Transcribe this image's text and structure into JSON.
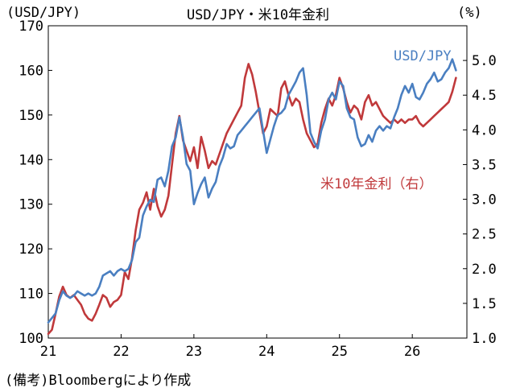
{
  "chart_data": {
    "type": "line",
    "title": "USD/JPY・米10年金利",
    "y_left_unit": "(USD/JPY)",
    "y_right_unit": "(%)",
    "x_ticks": [
      "21",
      "22",
      "23",
      "24",
      "25",
      "26"
    ],
    "x_range": [
      2021.0,
      2026.75
    ],
    "y_left_ticks": [
      "100",
      "110",
      "120",
      "130",
      "140",
      "150",
      "160",
      "170"
    ],
    "y_left_range": [
      100,
      170
    ],
    "y_right_ticks": [
      "1.0",
      "1.5",
      "2.0",
      "2.5",
      "3.0",
      "3.5",
      "4.0",
      "4.5",
      "5.0"
    ],
    "y_right_range": [
      1.0,
      5.5
    ],
    "grid": false,
    "series": [
      {
        "name": "USD/JPY",
        "axis": "left",
        "color": "#4a7fc1",
        "x": [
          2021.0,
          2021.05,
          2021.1,
          2021.15,
          2021.2,
          2021.25,
          2021.3,
          2021.35,
          2021.4,
          2021.45,
          2021.5,
          2021.55,
          2021.6,
          2021.65,
          2021.7,
          2021.75,
          2021.8,
          2021.85,
          2021.9,
          2021.95,
          2022.0,
          2022.05,
          2022.1,
          2022.15,
          2022.2,
          2022.25,
          2022.3,
          2022.35,
          2022.4,
          2022.45,
          2022.5,
          2022.55,
          2022.6,
          2022.65,
          2022.7,
          2022.75,
          2022.8,
          2022.85,
          2022.9,
          2022.95,
          2023.0,
          2023.05,
          2023.1,
          2023.15,
          2023.2,
          2023.25,
          2023.3,
          2023.35,
          2023.4,
          2023.45,
          2023.5,
          2023.55,
          2023.6,
          2023.65,
          2023.7,
          2023.75,
          2023.8,
          2023.85,
          2023.9,
          2023.95,
          2024.0,
          2024.05,
          2024.1,
          2024.15,
          2024.2,
          2024.25,
          2024.3,
          2024.35,
          2024.4,
          2024.45,
          2024.5,
          2024.55,
          2024.6,
          2024.65,
          2024.7,
          2024.75,
          2024.8,
          2024.85,
          2024.9,
          2024.95,
          2025.0,
          2025.05,
          2025.1,
          2025.15,
          2025.2,
          2025.25,
          2025.3,
          2025.35,
          2025.4,
          2025.45,
          2025.5,
          2025.55,
          2025.6,
          2025.65,
          2025.7,
          2025.75,
          2025.8,
          2025.85,
          2025.9,
          2025.95,
          2026.0,
          2026.05,
          2026.1,
          2026.15,
          2026.2,
          2026.25,
          2026.3,
          2026.35,
          2026.4,
          2026.45,
          2026.5,
          2026.55,
          2026.6
        ],
        "values": [
          103.5,
          104.5,
          105.5,
          108.5,
          110.5,
          109.5,
          109.0,
          109.5,
          110.5,
          110.0,
          109.5,
          110.0,
          109.5,
          110.0,
          111.5,
          114.0,
          114.5,
          115.0,
          114.0,
          115.0,
          115.5,
          115.0,
          115.5,
          117.5,
          121.5,
          122.5,
          127.5,
          129.5,
          131.0,
          130.5,
          135.5,
          136.0,
          134.0,
          137.5,
          143.0,
          145.0,
          149.5,
          145.0,
          139.0,
          137.5,
          130.0,
          132.5,
          134.5,
          136.0,
          131.5,
          133.5,
          135.0,
          138.5,
          140.5,
          143.5,
          142.5,
          143.0,
          145.5,
          146.5,
          147.5,
          148.5,
          149.5,
          150.5,
          151.5,
          146.5,
          141.5,
          144.5,
          147.5,
          150.0,
          150.5,
          151.5,
          154.5,
          156.0,
          157.5,
          159.5,
          160.5,
          154.5,
          146.0,
          144.0,
          142.5,
          146.5,
          149.0,
          153.5,
          155.0,
          153.5,
          157.5,
          156.5,
          151.5,
          149.5,
          149.0,
          145.0,
          143.0,
          143.5,
          145.5,
          144.0,
          146.5,
          147.5,
          146.5,
          147.5,
          147.0,
          149.5,
          151.5,
          154.5,
          156.5,
          155.0,
          157.0,
          154.0,
          153.5,
          155.0,
          157.0,
          158.0,
          159.5,
          157.5,
          158.0,
          159.5,
          160.5,
          162.5,
          160.0
        ]
      },
      {
        "name": "米10年金利（右）",
        "axis": "right",
        "color": "#c0393b",
        "x": [
          2021.0,
          2021.05,
          2021.1,
          2021.15,
          2021.2,
          2021.25,
          2021.3,
          2021.35,
          2021.4,
          2021.45,
          2021.5,
          2021.55,
          2021.6,
          2021.65,
          2021.7,
          2021.75,
          2021.8,
          2021.85,
          2021.9,
          2021.95,
          2022.0,
          2022.05,
          2022.1,
          2022.15,
          2022.2,
          2022.25,
          2022.3,
          2022.35,
          2022.4,
          2022.45,
          2022.5,
          2022.55,
          2022.6,
          2022.65,
          2022.7,
          2022.75,
          2022.8,
          2022.85,
          2022.9,
          2022.95,
          2023.0,
          2023.05,
          2023.1,
          2023.15,
          2023.2,
          2023.25,
          2023.3,
          2023.35,
          2023.4,
          2023.45,
          2023.5,
          2023.55,
          2023.6,
          2023.65,
          2023.7,
          2023.75,
          2023.8,
          2023.85,
          2023.9,
          2023.95,
          2024.0,
          2024.05,
          2024.1,
          2024.15,
          2024.2,
          2024.25,
          2024.3,
          2024.35,
          2024.4,
          2024.45,
          2024.5,
          2024.55,
          2024.6,
          2024.65,
          2024.7,
          2024.75,
          2024.8,
          2024.85,
          2024.9,
          2024.95,
          2025.0,
          2025.05,
          2025.1,
          2025.15,
          2025.2,
          2025.25,
          2025.3,
          2025.35,
          2025.4,
          2025.45,
          2025.5,
          2025.55,
          2025.6,
          2025.65,
          2025.7,
          2025.75,
          2025.8,
          2025.85,
          2025.9,
          2025.95,
          2026.0,
          2026.05,
          2026.1,
          2026.15,
          2026.2,
          2026.25,
          2026.3,
          2026.35,
          2026.4,
          2026.45,
          2026.5,
          2026.55,
          2026.6
        ],
        "values": [
          1.06,
          1.12,
          1.35,
          1.6,
          1.74,
          1.62,
          1.58,
          1.62,
          1.55,
          1.48,
          1.35,
          1.28,
          1.25,
          1.35,
          1.48,
          1.62,
          1.58,
          1.45,
          1.52,
          1.55,
          1.62,
          1.95,
          1.85,
          2.15,
          2.55,
          2.85,
          2.95,
          3.1,
          2.85,
          3.15,
          2.9,
          2.75,
          2.85,
          3.05,
          3.5,
          3.95,
          4.2,
          3.85,
          3.7,
          3.55,
          3.75,
          3.45,
          3.9,
          3.7,
          3.45,
          3.55,
          3.5,
          3.65,
          3.8,
          3.95,
          4.05,
          4.15,
          4.25,
          4.35,
          4.75,
          4.95,
          4.8,
          4.55,
          4.25,
          3.95,
          4.05,
          4.3,
          4.25,
          4.2,
          4.6,
          4.7,
          4.5,
          4.35,
          4.45,
          4.4,
          4.15,
          3.95,
          3.85,
          3.75,
          3.8,
          4.1,
          4.3,
          4.45,
          4.35,
          4.5,
          4.75,
          4.6,
          4.4,
          4.25,
          4.35,
          4.3,
          4.15,
          4.4,
          4.5,
          4.35,
          4.4,
          4.3,
          4.2,
          4.15,
          4.1,
          4.15,
          4.1,
          4.15,
          4.1,
          4.15,
          4.15,
          4.2,
          4.1,
          4.05,
          4.1,
          4.15,
          4.2,
          4.25,
          4.3,
          4.35,
          4.4,
          4.55,
          4.75
        ]
      }
    ],
    "annotations": {
      "usd_label": "USD/JPY",
      "rate_label": "米10年金利（右）"
    },
    "note": "(備考)Bloombergにより作成"
  }
}
